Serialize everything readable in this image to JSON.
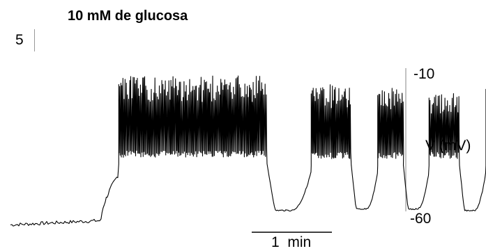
{
  "chart_data": {
    "type": "line",
    "title": "10 mM de glucosa",
    "panel_label": "5",
    "ylabel": "V (mV)",
    "yticks": [
      "-10",
      "-60"
    ],
    "ylim": [
      -60,
      -10
    ],
    "xlabel": "",
    "scalebar_label": "1  min",
    "scalebar_minutes": 1,
    "trace_color": "#000000",
    "series": [
      {
        "segments": [
          {
            "kind": "baseline",
            "t_start": 0.0,
            "t_end": 1.13,
            "v_start": -62.5,
            "v_end": -61.0
          },
          {
            "kind": "rise",
            "t_start": 1.13,
            "t_end": 1.35,
            "v_start": -61.0,
            "v_end": -45.0
          },
          {
            "kind": "burst",
            "t_start": 1.35,
            "t_end": 3.2,
            "v_plateau": -37.5,
            "v_peak": -11.0
          },
          {
            "kind": "interburst",
            "t_start": 3.2,
            "t_end": 3.75,
            "v_min": -57.5
          },
          {
            "kind": "burst",
            "t_start": 3.75,
            "t_end": 4.25,
            "v_plateau": -38.0,
            "v_peak": -14.0
          },
          {
            "kind": "interburst",
            "t_start": 4.25,
            "t_end": 4.58,
            "v_min": -57.0
          },
          {
            "kind": "burst",
            "t_start": 4.58,
            "t_end": 4.9,
            "v_plateau": -38.0,
            "v_peak": -15.0
          },
          {
            "kind": "interburst",
            "t_start": 4.9,
            "t_end": 5.22,
            "v_min": -57.0
          },
          {
            "kind": "burst",
            "t_start": 5.22,
            "t_end": 5.6,
            "v_plateau": -38.0,
            "v_peak": -17.0
          },
          {
            "kind": "interburst",
            "t_start": 5.6,
            "t_end": 5.93,
            "v_min": -57.5
          },
          {
            "kind": "burst",
            "t_start": 5.93,
            "t_end": 6.32,
            "v_plateau": -38.0,
            "v_peak": -15.5
          },
          {
            "kind": "interburst",
            "t_start": 6.32,
            "t_end": 6.6,
            "v_min": -58.0
          },
          {
            "kind": "burst",
            "t_start": 6.6,
            "t_end": 6.97,
            "v_plateau": -37.0,
            "v_peak": -16.0
          },
          {
            "kind": "tail",
            "t_start": 6.97,
            "t_end": 7.2,
            "v_min": -58.5
          }
        ]
      }
    ]
  }
}
